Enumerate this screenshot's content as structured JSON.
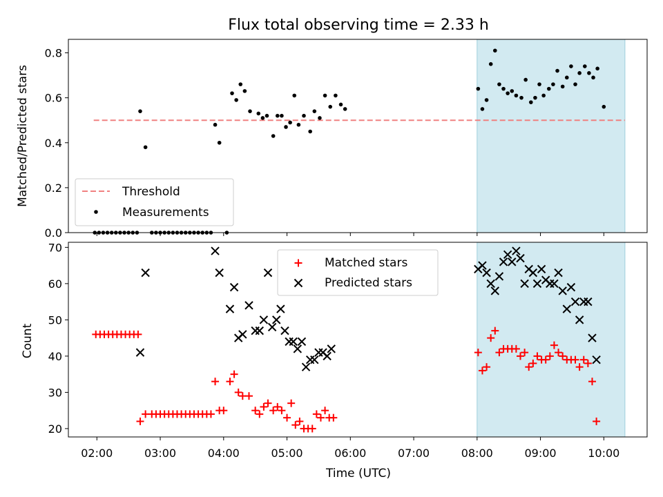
{
  "title": "Flux total observing time = 2.33 h",
  "colors": {
    "threshold": "#f08080",
    "measurement": "#000000",
    "matched": "#ff0000",
    "predicted": "#000000",
    "shade": "#add8e6"
  },
  "chart_data": [
    {
      "type": "scatter",
      "panel": "top",
      "ylabel": "Matched/Predicted stars",
      "ylim": [
        0,
        0.86
      ],
      "yticks": [
        0.0,
        0.2,
        0.4,
        0.6,
        0.8
      ],
      "yticklabels": [
        "0.0",
        "0.2",
        "0.4",
        "0.6",
        "0.8"
      ],
      "shaded_interval": [
        "08:00",
        "10:20"
      ],
      "legend": {
        "placement": "lower-left",
        "entries": [
          "Threshold",
          "Measurements"
        ]
      },
      "threshold": {
        "name": "Threshold",
        "y": 0.5,
        "x_range": [
          "01:57",
          "10:20"
        ],
        "style": "dashed"
      },
      "series": [
        {
          "name": "Measurements",
          "points": [
            [
              "01:58",
              0
            ],
            [
              "02:02",
              0
            ],
            [
              "02:06",
              0
            ],
            [
              "02:10",
              0
            ],
            [
              "02:14",
              0
            ],
            [
              "02:18",
              0
            ],
            [
              "02:22",
              0
            ],
            [
              "02:26",
              0
            ],
            [
              "02:30",
              0
            ],
            [
              "02:34",
              0
            ],
            [
              "02:38",
              0
            ],
            [
              "02:41",
              0.54
            ],
            [
              "02:46",
              0.38
            ],
            [
              "02:52",
              0
            ],
            [
              "02:56",
              0
            ],
            [
              "03:00",
              0
            ],
            [
              "03:04",
              0
            ],
            [
              "03:08",
              0
            ],
            [
              "03:12",
              0
            ],
            [
              "03:16",
              0
            ],
            [
              "03:20",
              0
            ],
            [
              "03:24",
              0
            ],
            [
              "03:28",
              0
            ],
            [
              "03:32",
              0
            ],
            [
              "03:36",
              0
            ],
            [
              "03:40",
              0
            ],
            [
              "03:44",
              0
            ],
            [
              "03:48",
              0
            ],
            [
              "03:52",
              0.48
            ],
            [
              "03:56",
              0.4
            ],
            [
              "04:03",
              0
            ],
            [
              "04:08",
              0.62
            ],
            [
              "04:12",
              0.59
            ],
            [
              "04:16",
              0.66
            ],
            [
              "04:20",
              0.63
            ],
            [
              "04:25",
              0.54
            ],
            [
              "04:33",
              0.53
            ],
            [
              "04:37",
              0.51
            ],
            [
              "04:41",
              0.52
            ],
            [
              "04:47",
              0.43
            ],
            [
              "04:51",
              0.52
            ],
            [
              "04:55",
              0.52
            ],
            [
              "04:59",
              0.47
            ],
            [
              "05:03",
              0.49
            ],
            [
              "05:07",
              0.61
            ],
            [
              "05:11",
              0.48
            ],
            [
              "05:16",
              0.52
            ],
            [
              "05:22",
              0.45
            ],
            [
              "05:26",
              0.54
            ],
            [
              "05:31",
              0.51
            ],
            [
              "05:36",
              0.61
            ],
            [
              "05:41",
              0.56
            ],
            [
              "05:46",
              0.61
            ],
            [
              "05:51",
              0.57
            ],
            [
              "05:55",
              0.55
            ],
            [
              "08:01",
              0.64
            ],
            [
              "08:05",
              0.55
            ],
            [
              "08:09",
              0.59
            ],
            [
              "08:13",
              0.75
            ],
            [
              "08:17",
              0.81
            ],
            [
              "08:21",
              0.66
            ],
            [
              "08:25",
              0.64
            ],
            [
              "08:29",
              0.62
            ],
            [
              "08:33",
              0.63
            ],
            [
              "08:37",
              0.61
            ],
            [
              "08:42",
              0.6
            ],
            [
              "08:46",
              0.68
            ],
            [
              "08:51",
              0.58
            ],
            [
              "08:55",
              0.6
            ],
            [
              "08:59",
              0.66
            ],
            [
              "09:03",
              0.61
            ],
            [
              "09:08",
              0.64
            ],
            [
              "09:12",
              0.66
            ],
            [
              "09:16",
              0.72
            ],
            [
              "09:21",
              0.65
            ],
            [
              "09:25",
              0.69
            ],
            [
              "09:29",
              0.74
            ],
            [
              "09:33",
              0.66
            ],
            [
              "09:37",
              0.71
            ],
            [
              "09:42",
              0.74
            ],
            [
              "09:46",
              0.71
            ],
            [
              "09:50",
              0.69
            ],
            [
              "09:54",
              0.73
            ],
            [
              "10:00",
              0.56
            ]
          ]
        }
      ]
    },
    {
      "type": "scatter",
      "panel": "bottom",
      "xlabel": "Time (UTC)",
      "ylabel": "Count",
      "xlim": [
        "01:33",
        "10:41"
      ],
      "xticks": [
        "02:00",
        "03:00",
        "04:00",
        "05:00",
        "06:00",
        "07:00",
        "08:00",
        "09:00",
        "10:00"
      ],
      "ylim": [
        17.7,
        71.4
      ],
      "yticks": [
        20,
        30,
        40,
        50,
        60,
        70
      ],
      "shaded_interval": [
        "08:00",
        "10:20"
      ],
      "legend": {
        "placement": "upper-center",
        "entries": [
          "Matched stars",
          "Predicted stars"
        ]
      },
      "series": [
        {
          "name": "Matched stars",
          "marker": "+",
          "points": [
            [
              "01:59",
              46
            ],
            [
              "02:03",
              46
            ],
            [
              "02:07",
              46
            ],
            [
              "02:11",
              46
            ],
            [
              "02:15",
              46
            ],
            [
              "02:19",
              46
            ],
            [
              "02:23",
              46
            ],
            [
              "02:27",
              46
            ],
            [
              "02:31",
              46
            ],
            [
              "02:35",
              46
            ],
            [
              "02:39",
              46
            ],
            [
              "02:41",
              22
            ],
            [
              "02:46",
              24
            ],
            [
              "02:52",
              24
            ],
            [
              "02:56",
              24
            ],
            [
              "03:00",
              24
            ],
            [
              "03:04",
              24
            ],
            [
              "03:08",
              24
            ],
            [
              "03:12",
              24
            ],
            [
              "03:16",
              24
            ],
            [
              "03:20",
              24
            ],
            [
              "03:24",
              24
            ],
            [
              "03:28",
              24
            ],
            [
              "03:32",
              24
            ],
            [
              "03:36",
              24
            ],
            [
              "03:40",
              24
            ],
            [
              "03:44",
              24
            ],
            [
              "03:48",
              24
            ],
            [
              "03:52",
              33
            ],
            [
              "03:56",
              25
            ],
            [
              "04:00",
              25
            ],
            [
              "04:06",
              33
            ],
            [
              "04:10",
              35
            ],
            [
              "04:14",
              30
            ],
            [
              "04:18",
              29
            ],
            [
              "04:24",
              29
            ],
            [
              "04:30",
              25
            ],
            [
              "04:34",
              24
            ],
            [
              "04:38",
              26
            ],
            [
              "04:42",
              27
            ],
            [
              "04:47",
              25
            ],
            [
              "04:51",
              26
            ],
            [
              "04:55",
              25
            ],
            [
              "05:00",
              23
            ],
            [
              "05:04",
              27
            ],
            [
              "05:08",
              21
            ],
            [
              "05:12",
              22
            ],
            [
              "05:16",
              20
            ],
            [
              "05:20",
              20
            ],
            [
              "05:24",
              20
            ],
            [
              "05:28",
              24
            ],
            [
              "05:32",
              23
            ],
            [
              "05:36",
              25
            ],
            [
              "05:40",
              23
            ],
            [
              "05:44",
              23
            ],
            [
              "08:01",
              41
            ],
            [
              "08:05",
              36
            ],
            [
              "08:09",
              37
            ],
            [
              "08:13",
              45
            ],
            [
              "08:17",
              47
            ],
            [
              "08:21",
              41
            ],
            [
              "08:25",
              42
            ],
            [
              "08:29",
              42
            ],
            [
              "08:33",
              42
            ],
            [
              "08:37",
              42
            ],
            [
              "08:41",
              40
            ],
            [
              "08:45",
              41
            ],
            [
              "08:49",
              37
            ],
            [
              "08:53",
              38
            ],
            [
              "08:57",
              40
            ],
            [
              "09:01",
              39
            ],
            [
              "09:05",
              39
            ],
            [
              "09:09",
              40
            ],
            [
              "09:13",
              43
            ],
            [
              "09:17",
              41
            ],
            [
              "09:21",
              40
            ],
            [
              "09:25",
              39
            ],
            [
              "09:29",
              39
            ],
            [
              "09:33",
              39
            ],
            [
              "09:37",
              37
            ],
            [
              "09:41",
              39
            ],
            [
              "09:45",
              38
            ],
            [
              "09:49",
              33
            ],
            [
              "09:53",
              22
            ]
          ]
        },
        {
          "name": "Predicted stars",
          "marker": "x",
          "points": [
            [
              "02:41",
              41
            ],
            [
              "02:46",
              63
            ],
            [
              "03:52",
              69
            ],
            [
              "03:56",
              63
            ],
            [
              "04:06",
              53
            ],
            [
              "04:10",
              59
            ],
            [
              "04:14",
              45
            ],
            [
              "04:18",
              46
            ],
            [
              "04:24",
              54
            ],
            [
              "04:30",
              47
            ],
            [
              "04:34",
              47
            ],
            [
              "04:38",
              50
            ],
            [
              "04:42",
              63
            ],
            [
              "04:46",
              48
            ],
            [
              "04:50",
              50
            ],
            [
              "04:54",
              53
            ],
            [
              "04:58",
              47
            ],
            [
              "05:02",
              44
            ],
            [
              "05:06",
              44
            ],
            [
              "05:10",
              42
            ],
            [
              "05:14",
              44
            ],
            [
              "05:18",
              37
            ],
            [
              "05:22",
              39
            ],
            [
              "05:26",
              39
            ],
            [
              "05:30",
              41
            ],
            [
              "05:34",
              41
            ],
            [
              "05:38",
              40
            ],
            [
              "05:42",
              42
            ],
            [
              "08:01",
              64
            ],
            [
              "08:05",
              65
            ],
            [
              "08:09",
              63
            ],
            [
              "08:13",
              60
            ],
            [
              "08:17",
              58
            ],
            [
              "08:21",
              62
            ],
            [
              "08:25",
              66
            ],
            [
              "08:29",
              68
            ],
            [
              "08:33",
              66
            ],
            [
              "08:37",
              69
            ],
            [
              "08:41",
              67
            ],
            [
              "08:45",
              60
            ],
            [
              "08:49",
              64
            ],
            [
              "08:53",
              63
            ],
            [
              "08:57",
              60
            ],
            [
              "09:01",
              64
            ],
            [
              "09:05",
              61
            ],
            [
              "09:09",
              60
            ],
            [
              "09:13",
              60
            ],
            [
              "09:17",
              63
            ],
            [
              "09:21",
              58
            ],
            [
              "09:25",
              53
            ],
            [
              "09:29",
              59
            ],
            [
              "09:33",
              55
            ],
            [
              "09:37",
              50
            ],
            [
              "09:41",
              55
            ],
            [
              "09:45",
              55
            ],
            [
              "09:49",
              45
            ],
            [
              "09:53",
              39
            ]
          ]
        }
      ]
    }
  ]
}
